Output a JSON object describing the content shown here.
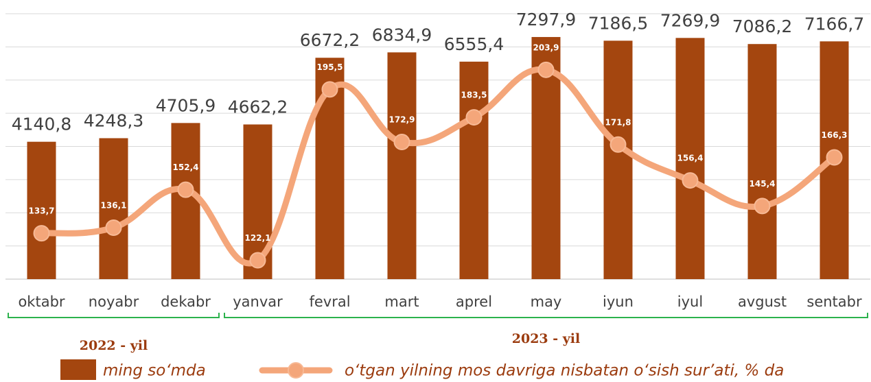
{
  "chart_data": {
    "type": "bar_line",
    "categories": [
      "oktabr",
      "noyabr",
      "dekabr",
      "yanvar",
      "fevral",
      "mart",
      "aprel",
      "may",
      "iyun",
      "iyul",
      "avgust",
      "sentabr"
    ],
    "groups": [
      "2022 - yil",
      "2023 - yil"
    ],
    "series": [
      {
        "name": "ming so‘mda",
        "type": "bar",
        "color": "#a4460f",
        "values": [
          4140.8,
          4248.3,
          4705.9,
          4662.2,
          6672.2,
          6834.9,
          6555.4,
          7297.9,
          7186.5,
          7269.9,
          7086.2,
          7166.7
        ],
        "value_labels": [
          "4140,8",
          "4248,3",
          "4705,9",
          "4662,2",
          "6672,2",
          "6834,9",
          "6555,4",
          "7297,9",
          "7186,5",
          "7269,9",
          "7086,2",
          "7166,7"
        ]
      },
      {
        "name": "o‘tgan yilning mos davriga nisbatan o‘sish sur’ati, % da",
        "type": "line",
        "axis": "y2",
        "color": "#f4a67a",
        "values": [
          133.7,
          136.1,
          152.4,
          122.1,
          195.5,
          172.9,
          183.5,
          203.9,
          171.8,
          156.4,
          145.4,
          166.3
        ],
        "value_labels": [
          "133,7",
          "136,1",
          "152,4",
          "122,1",
          "195,5",
          "172,9",
          "183,5",
          "203,9",
          "171,8",
          "156,4",
          "145,4",
          "166,3"
        ]
      }
    ],
    "ylim": [
      0,
      8000
    ],
    "yticks": [
      0,
      1000,
      2000,
      3000,
      4000,
      5000,
      6000,
      7000,
      8000
    ],
    "y2lim": [
      114,
      228
    ],
    "grid": true
  }
}
